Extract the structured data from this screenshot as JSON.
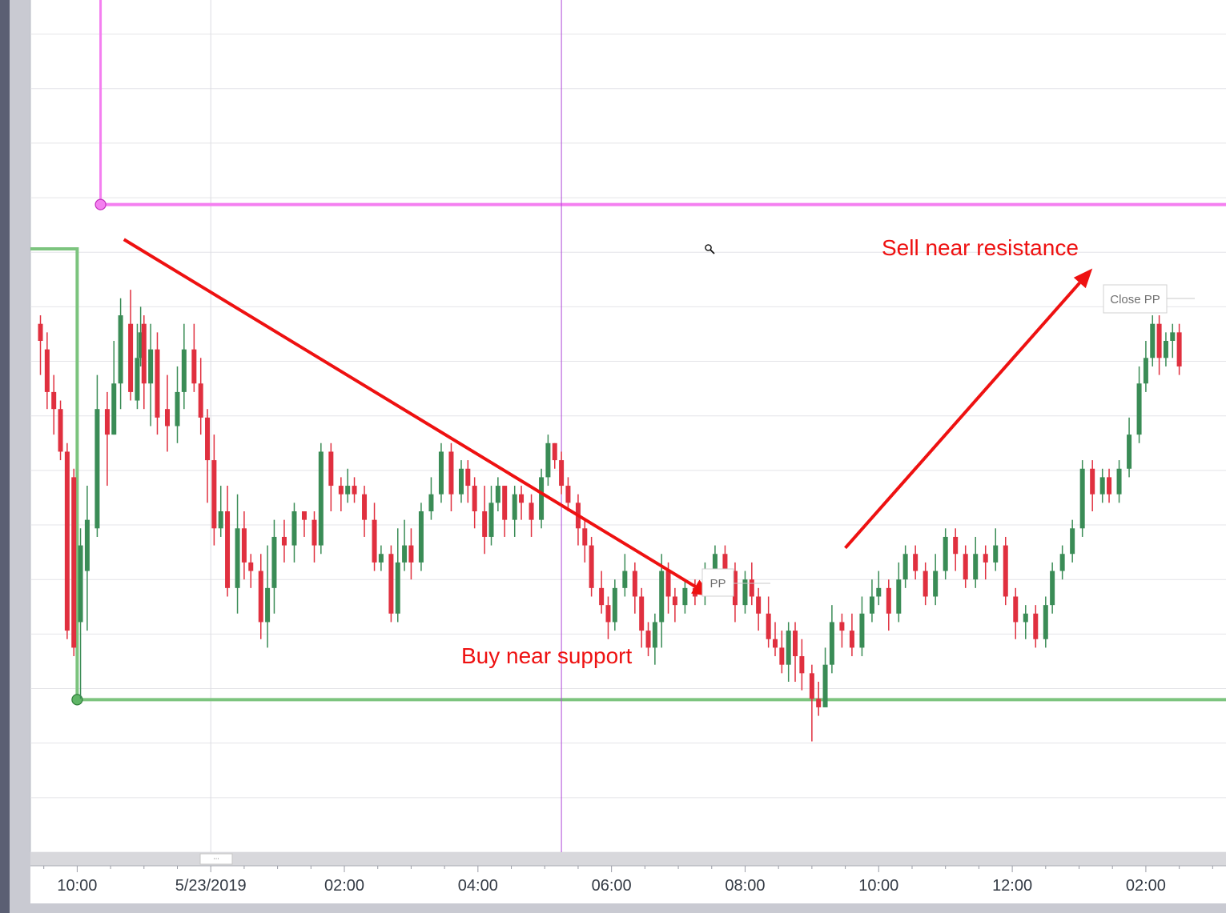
{
  "chart_data": {
    "type": "candlestick",
    "title": "",
    "xlabel": "",
    "ylabel": "",
    "x_tick_labels": [
      "10:00",
      "5/23/2019",
      "02:00",
      "04:00",
      "06:00",
      "08:00",
      "10:00",
      "12:00",
      "02:00"
    ],
    "x_tick_hours": [
      10,
      12,
      14,
      16,
      18,
      20,
      22,
      24,
      26
    ],
    "x_range_hours": [
      9.3,
      27.2
    ],
    "y_range": [
      0,
      100
    ],
    "grid": true,
    "colors": {
      "up": "#3a8c56",
      "down": "#e0303f",
      "support": "#7cc47e",
      "resistance": "#f47ff0",
      "crosshair": "#b04ad8",
      "annotation": "#ee1111"
    },
    "resistance": {
      "start_hour": 10.35,
      "level": 76.0
    },
    "support": {
      "start_hour": 10.0,
      "level": 17.9
    },
    "crosshair_hour": 17.25,
    "labels": {
      "pp": "PP",
      "close_pp": "Close PP",
      "sell_note": "Sell near resistance",
      "buy_note": "Buy near support",
      "scroll_handle": "···"
    },
    "arrows": [
      {
        "from": [
          10.7,
          71.9
        ],
        "to": [
          19.5,
          30.0
        ]
      },
      {
        "from": [
          21.5,
          35.7
        ],
        "to": [
          25.2,
          68.5
        ]
      }
    ],
    "candles": [
      [
        9.45,
        62,
        60,
        63,
        56
      ],
      [
        9.55,
        59,
        54,
        61,
        52
      ],
      [
        9.65,
        54,
        52,
        56,
        49
      ],
      [
        9.75,
        52,
        47,
        53,
        46
      ],
      [
        9.85,
        47,
        26,
        48,
        25
      ],
      [
        9.95,
        44,
        24,
        45,
        23
      ],
      [
        10.05,
        27,
        36,
        38,
        18
      ],
      [
        10.15,
        33,
        39,
        43,
        26
      ],
      [
        10.3,
        38,
        52,
        56,
        37
      ],
      [
        10.45,
        52,
        49,
        54,
        43
      ],
      [
        10.55,
        49,
        55,
        60,
        49
      ],
      [
        10.65,
        55,
        63,
        65,
        52
      ],
      [
        10.8,
        62,
        54,
        66,
        53
      ],
      [
        10.9,
        53,
        58,
        62,
        52
      ],
      [
        10.95,
        58,
        61,
        64,
        57
      ],
      [
        11.0,
        62,
        55,
        63,
        52
      ],
      [
        11.1,
        55,
        59,
        62,
        50
      ],
      [
        11.2,
        59,
        51,
        61,
        49
      ],
      [
        11.35,
        52,
        50,
        56,
        47
      ],
      [
        11.5,
        50,
        54,
        57,
        48
      ],
      [
        11.6,
        54,
        59,
        62,
        52
      ],
      [
        11.75,
        59,
        55,
        62,
        54
      ],
      [
        11.85,
        55,
        51,
        58,
        49
      ],
      [
        11.95,
        51,
        46,
        52,
        41
      ],
      [
        12.05,
        46,
        38,
        49,
        36
      ],
      [
        12.15,
        38,
        40,
        43,
        37
      ],
      [
        12.25,
        40,
        31,
        43,
        30
      ],
      [
        12.4,
        31,
        38,
        42,
        28
      ],
      [
        12.5,
        38,
        34,
        40,
        32
      ],
      [
        12.6,
        34,
        33,
        35,
        31
      ],
      [
        12.75,
        33,
        27,
        35,
        25
      ],
      [
        12.85,
        27,
        31,
        36,
        24
      ],
      [
        12.95,
        31,
        37,
        39,
        28
      ],
      [
        13.1,
        37,
        36,
        39,
        34
      ],
      [
        13.25,
        36,
        40,
        41,
        34
      ],
      [
        13.4,
        40,
        39,
        40,
        37
      ],
      [
        13.55,
        39,
        36,
        40,
        34
      ],
      [
        13.65,
        36,
        47,
        48,
        35
      ],
      [
        13.8,
        47,
        43,
        48,
        40
      ],
      [
        13.95,
        43,
        42,
        44,
        40
      ],
      [
        14.05,
        42,
        43,
        45,
        41
      ],
      [
        14.15,
        43,
        42,
        44,
        41
      ],
      [
        14.3,
        42,
        39,
        43,
        37
      ],
      [
        14.45,
        39,
        34,
        41,
        33
      ],
      [
        14.55,
        34,
        35,
        36,
        33
      ],
      [
        14.7,
        35,
        28,
        36,
        27
      ],
      [
        14.8,
        28,
        34,
        38,
        27
      ],
      [
        14.9,
        34,
        36,
        39,
        33
      ],
      [
        15.0,
        36,
        34,
        38,
        32
      ],
      [
        15.15,
        34,
        40,
        41,
        33
      ],
      [
        15.3,
        40,
        42,
        44,
        39
      ],
      [
        15.45,
        42,
        47,
        48,
        41
      ],
      [
        15.6,
        47,
        42,
        48,
        40
      ],
      [
        15.75,
        42,
        45,
        46,
        41
      ],
      [
        15.85,
        45,
        43,
        46,
        41
      ],
      [
        15.95,
        43,
        40,
        44,
        38
      ],
      [
        16.1,
        40,
        37,
        43,
        35
      ],
      [
        16.2,
        37,
        41,
        43,
        36
      ],
      [
        16.3,
        41,
        43,
        44,
        40
      ],
      [
        16.4,
        43,
        39,
        43,
        37
      ],
      [
        16.55,
        39,
        42,
        43,
        37
      ],
      [
        16.65,
        42,
        41,
        43,
        39
      ],
      [
        16.8,
        41,
        39,
        42,
        37
      ],
      [
        16.95,
        39,
        44,
        45,
        38
      ],
      [
        17.05,
        44,
        48,
        49,
        43
      ],
      [
        17.15,
        48,
        46,
        48,
        45
      ],
      [
        17.25,
        46,
        43,
        47,
        42
      ],
      [
        17.35,
        43,
        41,
        44,
        40
      ],
      [
        17.5,
        41,
        38,
        42,
        36
      ],
      [
        17.6,
        38,
        36,
        39,
        34
      ],
      [
        17.7,
        36,
        31,
        37,
        30
      ],
      [
        17.85,
        31,
        29,
        33,
        28
      ],
      [
        17.95,
        29,
        27,
        30,
        25
      ],
      [
        18.05,
        27,
        31,
        32,
        26
      ],
      [
        18.2,
        31,
        33,
        35,
        30
      ],
      [
        18.35,
        33,
        30,
        34,
        28
      ],
      [
        18.45,
        30,
        26,
        31,
        24
      ],
      [
        18.55,
        26,
        24,
        27,
        23
      ],
      [
        18.65,
        24,
        27,
        28,
        22
      ],
      [
        18.75,
        27,
        33,
        35,
        24
      ],
      [
        18.85,
        33,
        30,
        34,
        28
      ],
      [
        18.95,
        30,
        29,
        31,
        27
      ],
      [
        19.1,
        29,
        31,
        32,
        28
      ],
      [
        19.25,
        31,
        30,
        32,
        29
      ],
      [
        19.4,
        30,
        33,
        34,
        29
      ],
      [
        19.55,
        33,
        35,
        36,
        32
      ],
      [
        19.7,
        35,
        33,
        36,
        32
      ],
      [
        19.85,
        33,
        29,
        34,
        27
      ],
      [
        20.0,
        29,
        32,
        33,
        28
      ],
      [
        20.1,
        32,
        30,
        34,
        29
      ],
      [
        20.2,
        30,
        28,
        31,
        26
      ],
      [
        20.35,
        28,
        25,
        30,
        24
      ],
      [
        20.45,
        25,
        24,
        27,
        23
      ],
      [
        20.55,
        24,
        22,
        26,
        21
      ],
      [
        20.65,
        22,
        26,
        27,
        20
      ],
      [
        20.75,
        26,
        23,
        27,
        20
      ],
      [
        20.85,
        23,
        21,
        25,
        19
      ],
      [
        21.0,
        21,
        18,
        22,
        13
      ],
      [
        21.1,
        18,
        17,
        20,
        16
      ],
      [
        21.2,
        17,
        22,
        24,
        18
      ],
      [
        21.3,
        22,
        27,
        29,
        21
      ],
      [
        21.45,
        27,
        26,
        28,
        24
      ],
      [
        21.6,
        26,
        24,
        28,
        23
      ],
      [
        21.75,
        24,
        28,
        30,
        23
      ],
      [
        21.9,
        28,
        30,
        32,
        27
      ],
      [
        22.0,
        30,
        31,
        33,
        29
      ],
      [
        22.15,
        31,
        28,
        32,
        26
      ],
      [
        22.3,
        28,
        32,
        34,
        27
      ],
      [
        22.4,
        32,
        35,
        36,
        31
      ],
      [
        22.55,
        35,
        33,
        36,
        32
      ],
      [
        22.7,
        33,
        30,
        34,
        29
      ],
      [
        22.85,
        30,
        33,
        35,
        29
      ],
      [
        23.0,
        33,
        37,
        38,
        32
      ],
      [
        23.15,
        37,
        35,
        38,
        33
      ],
      [
        23.3,
        35,
        32,
        36,
        31
      ],
      [
        23.45,
        32,
        35,
        37,
        31
      ],
      [
        23.6,
        35,
        34,
        36,
        32
      ],
      [
        23.75,
        34,
        36,
        38,
        33
      ],
      [
        23.9,
        36,
        30,
        37,
        29
      ],
      [
        24.05,
        30,
        27,
        31,
        25
      ],
      [
        24.2,
        27,
        28,
        29,
        25
      ],
      [
        24.35,
        28,
        25,
        29,
        24
      ],
      [
        24.5,
        25,
        29,
        30,
        24
      ],
      [
        24.6,
        29,
        33,
        34,
        28
      ],
      [
        24.75,
        33,
        35,
        36,
        32
      ],
      [
        24.9,
        35,
        38,
        39,
        34
      ],
      [
        25.05,
        38,
        45,
        46,
        37
      ],
      [
        25.2,
        45,
        42,
        46,
        40
      ],
      [
        25.35,
        42,
        44,
        45,
        41
      ],
      [
        25.45,
        44,
        42,
        45,
        41
      ],
      [
        25.6,
        42,
        45,
        46,
        41
      ],
      [
        25.75,
        45,
        49,
        51,
        44
      ],
      [
        25.9,
        49,
        55,
        57,
        48
      ],
      [
        26.0,
        55,
        58,
        60,
        54
      ],
      [
        26.1,
        58,
        62,
        63,
        57
      ],
      [
        26.2,
        62,
        58,
        63,
        56
      ],
      [
        26.3,
        58,
        60,
        61,
        57
      ],
      [
        26.4,
        60,
        61,
        62,
        58
      ],
      [
        26.5,
        61,
        57,
        62,
        56
      ]
    ]
  }
}
